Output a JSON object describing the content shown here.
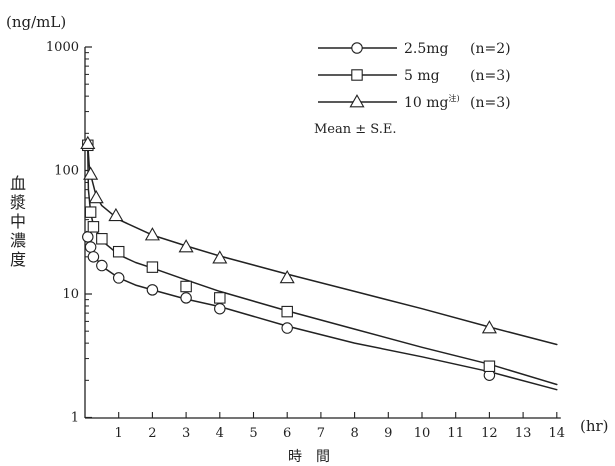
{
  "chart_data": {
    "type": "scatter",
    "title": "",
    "y_unit_label": "(ng/mL)",
    "x_unit_label": "(hr)",
    "xlabel": "時　間",
    "ylabel_chars": [
      "血",
      "漿",
      "中",
      "濃",
      "度"
    ],
    "x_ticks": [
      "1",
      "2",
      "3",
      "4",
      "5",
      "6",
      "7",
      "8",
      "9",
      "10",
      "11",
      "12",
      "13",
      "14"
    ],
    "y_ticks": [
      "1",
      "10",
      "100",
      "1000"
    ],
    "xlim": [
      0,
      14
    ],
    "ylim": [
      1,
      1000
    ],
    "y_scale": "log",
    "grid": false,
    "legend_placement": "top-right",
    "legend_note": "Mean ± S.E.",
    "series": [
      {
        "name": "2.5mg",
        "n_label": "(n=2)",
        "marker": "circle",
        "points": [
          [
            0.083,
            29
          ],
          [
            0.167,
            24
          ],
          [
            0.25,
            20
          ],
          [
            0.5,
            17
          ],
          [
            1,
            13.5
          ],
          [
            2,
            10.8
          ],
          [
            3,
            9.3
          ],
          [
            4,
            7.6
          ],
          [
            6,
            5.3
          ],
          [
            12,
            2.2
          ]
        ],
        "fit_curve": [
          [
            0.05,
            32
          ],
          [
            0.083,
            29
          ],
          [
            0.167,
            24
          ],
          [
            0.25,
            20.8
          ],
          [
            0.5,
            16.8
          ],
          [
            1,
            13.5
          ],
          [
            1.5,
            11.8
          ],
          [
            2,
            10.8
          ],
          [
            3,
            9.1
          ],
          [
            4,
            7.9
          ],
          [
            6,
            5.5
          ],
          [
            8,
            4.0
          ],
          [
            10,
            3.1
          ],
          [
            12,
            2.35
          ],
          [
            14,
            1.68
          ]
        ]
      },
      {
        "name": "5 mg",
        "n_label": "(n=3)",
        "marker": "square",
        "points": [
          [
            0.083,
            160
          ],
          [
            0.167,
            46
          ],
          [
            0.25,
            35
          ],
          [
            0.5,
            28
          ],
          [
            1,
            22
          ],
          [
            2,
            16.5
          ],
          [
            3,
            11.5
          ],
          [
            4,
            9.3
          ],
          [
            6,
            7.2
          ],
          [
            12,
            2.6
          ]
        ],
        "fit_curve": [
          [
            0.08,
            160
          ],
          [
            0.1,
            70
          ],
          [
            0.167,
            46
          ],
          [
            0.25,
            36
          ],
          [
            0.5,
            27
          ],
          [
            1,
            20.8
          ],
          [
            1.5,
            18
          ],
          [
            2,
            16.2
          ],
          [
            3,
            13
          ],
          [
            4,
            10.5
          ],
          [
            6,
            7.3
          ],
          [
            8,
            5.2
          ],
          [
            10,
            3.7
          ],
          [
            12,
            2.7
          ],
          [
            14,
            1.85
          ]
        ]
      },
      {
        "name": "10 mg",
        "name_superscript": "注)",
        "n_label": "(n=3)",
        "marker": "triangle",
        "points": [
          [
            0.083,
            165
          ],
          [
            0.167,
            93
          ],
          [
            0.333,
            60
          ],
          [
            0.917,
            43
          ],
          [
            2,
            30
          ],
          [
            3,
            24
          ],
          [
            4,
            19.5
          ],
          [
            6,
            13.5
          ],
          [
            12,
            5.3
          ]
        ],
        "fit_curve": [
          [
            0.08,
            165
          ],
          [
            0.125,
            110
          ],
          [
            0.167,
            93
          ],
          [
            0.333,
            62
          ],
          [
            0.5,
            52
          ],
          [
            1,
            40
          ],
          [
            2,
            30
          ],
          [
            3,
            24.5
          ],
          [
            4,
            20.3
          ],
          [
            6,
            14.5
          ],
          [
            8,
            10.5
          ],
          [
            10,
            7.6
          ],
          [
            12,
            5.4
          ],
          [
            14,
            3.9
          ]
        ]
      }
    ]
  }
}
